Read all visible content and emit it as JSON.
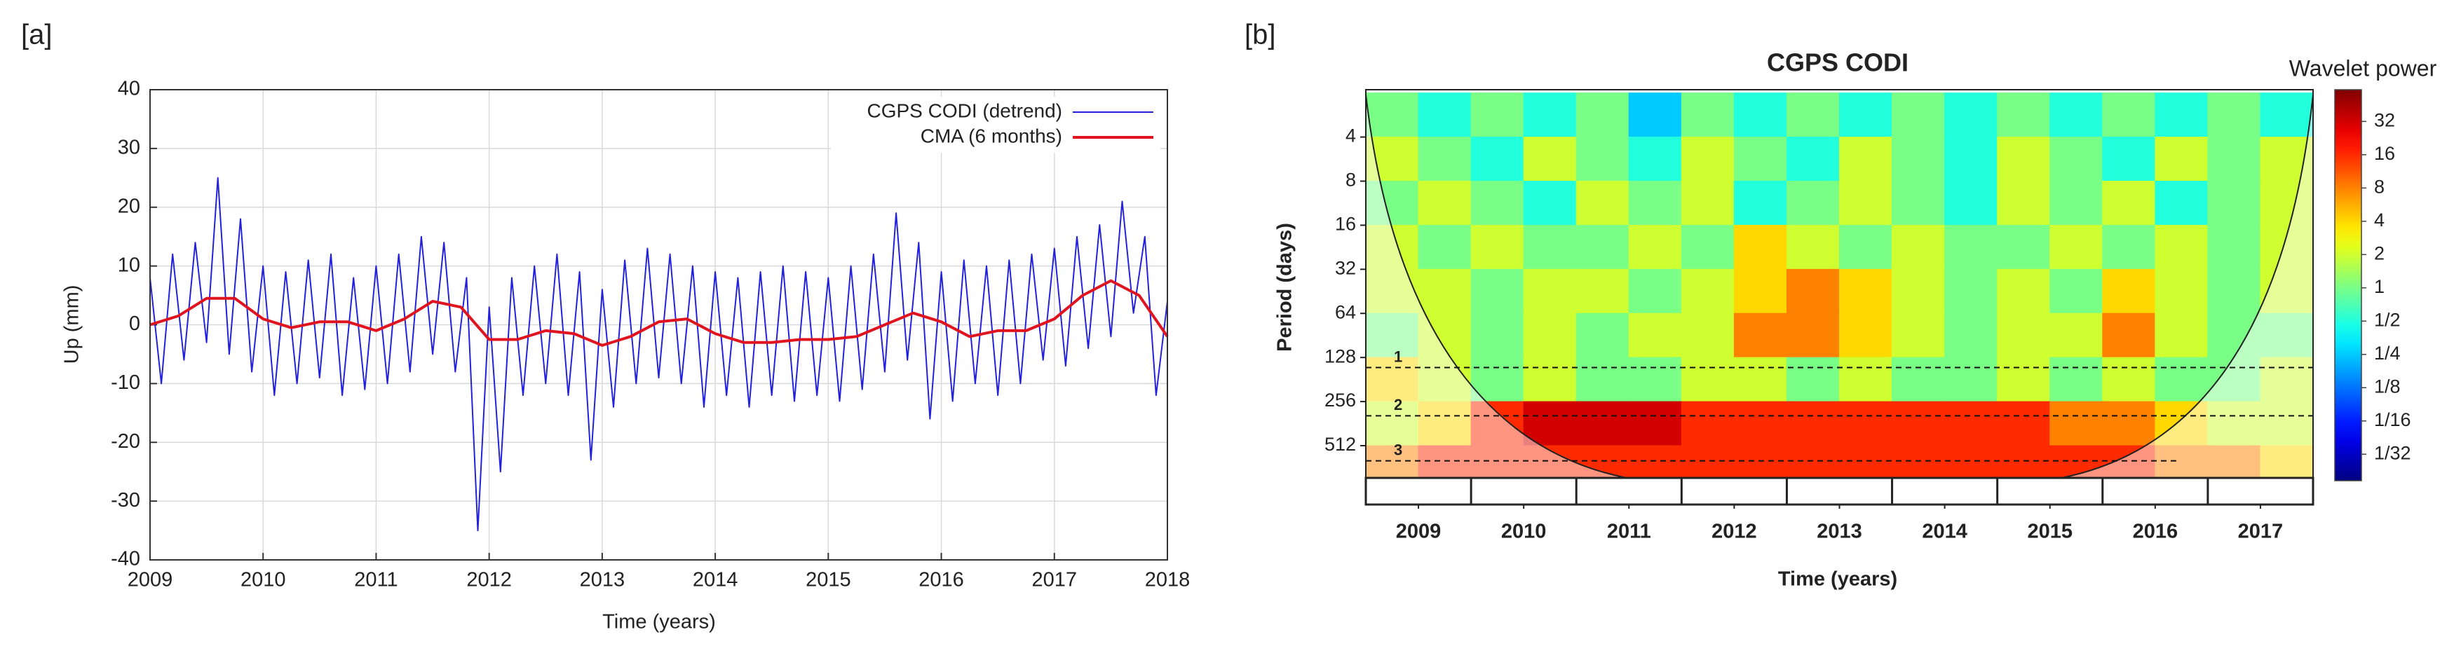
{
  "chart_data": [
    {
      "type": "line",
      "panel_label": "[a]",
      "x_label": "Time (years)",
      "y_label": "Up (mm)",
      "xlim": [
        2009,
        2018
      ],
      "xticks": [
        2009,
        2010,
        2011,
        2012,
        2013,
        2014,
        2015,
        2016,
        2017,
        2018
      ],
      "ylim": [
        -40,
        40
      ],
      "yticks": [
        -40,
        -30,
        -20,
        -10,
        0,
        10,
        20,
        30,
        40
      ],
      "grid": true,
      "legend": "upper right",
      "series": [
        {
          "name": "CGPS CODI (detrend)",
          "color": "#2222dd",
          "x": [
            2009.0,
            2009.1,
            2009.2,
            2009.3,
            2009.4,
            2009.5,
            2009.6,
            2009.7,
            2009.8,
            2009.9,
            2010.0,
            2010.1,
            2010.2,
            2010.3,
            2010.4,
            2010.5,
            2010.6,
            2010.7,
            2010.8,
            2010.9,
            2011.0,
            2011.1,
            2011.2,
            2011.3,
            2011.4,
            2011.5,
            2011.6,
            2011.7,
            2011.8,
            2011.9,
            2012.0,
            2012.1,
            2012.2,
            2012.3,
            2012.4,
            2012.5,
            2012.6,
            2012.7,
            2012.8,
            2012.9,
            2013.0,
            2013.1,
            2013.2,
            2013.3,
            2013.4,
            2013.5,
            2013.6,
            2013.7,
            2013.8,
            2013.9,
            2014.0,
            2014.1,
            2014.2,
            2014.3,
            2014.4,
            2014.5,
            2014.6,
            2014.7,
            2014.8,
            2014.9,
            2015.0,
            2015.1,
            2015.2,
            2015.3,
            2015.4,
            2015.5,
            2015.6,
            2015.7,
            2015.8,
            2015.9,
            2016.0,
            2016.1,
            2016.2,
            2016.3,
            2016.4,
            2016.5,
            2016.6,
            2016.7,
            2016.8,
            2016.9,
            2017.0,
            2017.1,
            2017.2,
            2017.3,
            2017.4,
            2017.5,
            2017.6,
            2017.7,
            2017.8,
            2017.9,
            2018.0
          ],
          "values": [
            8,
            -10,
            12,
            -6,
            14,
            -3,
            25,
            -5,
            18,
            -8,
            10,
            -12,
            9,
            -10,
            11,
            -9,
            12,
            -12,
            8,
            -11,
            10,
            -10,
            12,
            -8,
            15,
            -5,
            14,
            -8,
            8,
            -35,
            3,
            -25,
            8,
            -12,
            10,
            -10,
            12,
            -12,
            9,
            -23,
            6,
            -14,
            11,
            -10,
            13,
            -9,
            12,
            -10,
            10,
            -14,
            9,
            -12,
            8,
            -14,
            9,
            -12,
            10,
            -13,
            9,
            -12,
            8,
            -13,
            10,
            -11,
            12,
            -8,
            19,
            -6,
            14,
            -16,
            9,
            -13,
            11,
            -10,
            10,
            -12,
            11,
            -10,
            12,
            -6,
            13,
            -7,
            15,
            -4,
            17,
            -2,
            21,
            2,
            15,
            -12,
            4
          ]
        },
        {
          "name": "CMA (6 months)",
          "color": "#e0141e",
          "x": [
            2009.0,
            2009.25,
            2009.5,
            2009.75,
            2010.0,
            2010.25,
            2010.5,
            2010.75,
            2011.0,
            2011.25,
            2011.5,
            2011.75,
            2012.0,
            2012.25,
            2012.5,
            2012.75,
            2013.0,
            2013.25,
            2013.5,
            2013.75,
            2014.0,
            2014.25,
            2014.5,
            2014.75,
            2015.0,
            2015.25,
            2015.5,
            2015.75,
            2016.0,
            2016.25,
            2016.5,
            2016.75,
            2017.0,
            2017.25,
            2017.5,
            2017.75,
            2018.0
          ],
          "values": [
            0,
            1.5,
            4.5,
            4.5,
            1,
            -0.5,
            0.5,
            0.5,
            -1,
            1,
            4,
            3,
            -2.5,
            -2.5,
            -1,
            -1.5,
            -3.5,
            -2,
            0.5,
            1,
            -1.5,
            -3,
            -3,
            -2.5,
            -2.5,
            -2,
            0,
            2,
            0.5,
            -2,
            -1,
            -1,
            1,
            5,
            7.5,
            5,
            -2
          ]
        }
      ]
    },
    {
      "type": "heatmap",
      "panel_label": "[b]",
      "title": "CGPS CODI",
      "x_label": "Time (years)",
      "y_label": "Period (days)",
      "xlim": [
        2008.5,
        2017.5
      ],
      "xticks": [
        2009,
        2010,
        2011,
        2012,
        2013,
        2014,
        2015,
        2016,
        2017
      ],
      "ylim": [
        1.9,
        850
      ],
      "yscale": "log",
      "yticks": [
        4,
        8,
        16,
        32,
        64,
        128,
        256,
        512
      ],
      "xbins": [
        2008.5,
        2009,
        2009.5,
        2010,
        2010.5,
        2011,
        2011.5,
        2012,
        2012.5,
        2013,
        2013.5,
        2014,
        2014.5,
        2015,
        2015.5,
        2016,
        2016.5,
        2017,
        2017.5
      ],
      "ybins": [
        2,
        4,
        8,
        16,
        32,
        64,
        128,
        256,
        512,
        1024
      ],
      "colormap": "jet",
      "values": [
        [
          1,
          0.5,
          1,
          0.5,
          1,
          0.25,
          1,
          0.5,
          1,
          0.5,
          1,
          0.5,
          1,
          0.5,
          1,
          0.5,
          1,
          0.5
        ],
        [
          2,
          1,
          0.5,
          2,
          1,
          0.5,
          2,
          1,
          0.5,
          2,
          1,
          0.5,
          2,
          1,
          0.5,
          2,
          1,
          2
        ],
        [
          1,
          2,
          1,
          0.5,
          2,
          1,
          2,
          0.5,
          1,
          2,
          1,
          0.5,
          2,
          1,
          2,
          0.5,
          1,
          2
        ],
        [
          2,
          1,
          2,
          1,
          1,
          2,
          1,
          4,
          2,
          1,
          2,
          1,
          1,
          2,
          1,
          2,
          1,
          2
        ],
        [
          2,
          2,
          1,
          2,
          2,
          1,
          2,
          4,
          8,
          4,
          2,
          1,
          2,
          1,
          4,
          2,
          1,
          2
        ],
        [
          1,
          2,
          1,
          2,
          1,
          2,
          2,
          8,
          8,
          4,
          2,
          1,
          2,
          2,
          8,
          2,
          1,
          1
        ],
        [
          4,
          2,
          1,
          2,
          1,
          1,
          2,
          2,
          1,
          2,
          1,
          1,
          2,
          1,
          2,
          1,
          1,
          2
        ],
        [
          2,
          4,
          16,
          32,
          32,
          32,
          16,
          16,
          16,
          16,
          16,
          16,
          16,
          8,
          8,
          4,
          2,
          2
        ],
        [
          8,
          16,
          16,
          16,
          16,
          16,
          16,
          16,
          16,
          16,
          16,
          16,
          16,
          16,
          16,
          8,
          8,
          4
        ]
      ],
      "annotations": [
        {
          "label": "1",
          "period": 150,
          "from": 2008.5,
          "to": 2017.5
        },
        {
          "label": "2",
          "period": 320,
          "from": 2008.5,
          "to": 2017.5
        },
        {
          "label": "3",
          "period": 650,
          "from": 2008.5,
          "to": 2016.2
        }
      ],
      "colorbar": {
        "label": "Wavelet power",
        "lim": [
          0.018,
          62
        ],
        "ticks": [
          32,
          16,
          8,
          4,
          2,
          1,
          {
            "value": 0.5,
            "label": "1/2"
          },
          {
            "value": 0.25,
            "label": "1/4"
          },
          {
            "value": 0.125,
            "label": "1/8"
          },
          {
            "value": 0.0625,
            "label": "1/16"
          },
          {
            "value": 0.03125,
            "label": "1/32"
          }
        ]
      }
    }
  ]
}
